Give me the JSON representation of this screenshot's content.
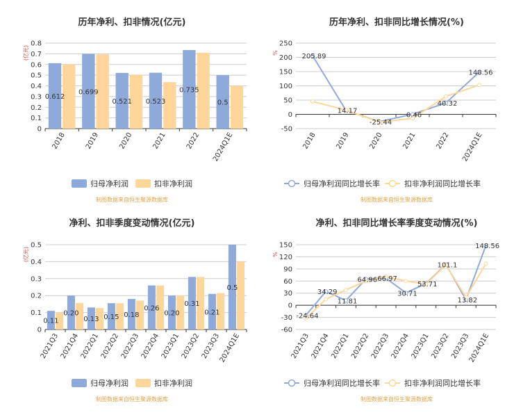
{
  "colors": {
    "primary": "#8eaadb",
    "secondary": "#ffd699",
    "grid": "#cccccc",
    "axis": "#333333",
    "source": "#e0a44a",
    "unit": "#e0463e"
  },
  "chart_data": [
    {
      "id": "annual-profit",
      "type": "bar",
      "title": "历年净利、扣非情况(亿元)",
      "unit_label": "(亿元)",
      "categories": [
        "2018",
        "2019",
        "2020",
        "2021",
        "2022",
        "2024Q1E"
      ],
      "series": [
        {
          "name": "归母净利润",
          "values": [
            0.612,
            0.699,
            0.521,
            0.523,
            0.735,
            0.5
          ],
          "labels": [
            "0.612",
            "0.699",
            "0.521",
            "0.523",
            "0.735",
            "0.5"
          ]
        },
        {
          "name": "扣非净利润",
          "values": [
            0.6,
            0.695,
            0.505,
            0.435,
            0.71,
            0.4
          ]
        }
      ],
      "yticks": [
        "0",
        "0.1",
        "0.2",
        "0.3",
        "0.4",
        "0.5",
        "0.6",
        "0.7",
        "0.8"
      ],
      "ylim": [
        0,
        0.8
      ],
      "legend_position": "bottom",
      "source": "制图数据来自恒生聚源数据库"
    },
    {
      "id": "annual-growth",
      "type": "line",
      "title": "历年净利、扣非同比增长情况(%)",
      "unit_label": "%",
      "categories": [
        "2018",
        "2019",
        "2020",
        "2021",
        "2022",
        "2024Q1E"
      ],
      "series": [
        {
          "name": "归母净利润同比增长率",
          "values": [
            205.89,
            14.17,
            -25.44,
            0.46,
            40.32,
            148.56
          ],
          "labels": [
            "205.89",
            "14.17",
            "-25.44",
            "0.46",
            "40.32",
            "148.56"
          ]
        },
        {
          "name": "扣非净利润同比增长率",
          "values": [
            45,
            15.5,
            -27,
            -14,
            63,
            103
          ]
        }
      ],
      "yticks": [
        "-50",
        "0",
        "50",
        "100",
        "150",
        "200",
        "250"
      ],
      "ylim": [
        -50,
        250
      ],
      "legend_position": "bottom",
      "source": "制图数据来自恒生聚源数据库"
    },
    {
      "id": "quarterly-profit",
      "type": "bar",
      "title": "净利、扣非季度变动情况(亿元)",
      "unit_label": "(亿元)",
      "categories": [
        "2021Q3",
        "2021Q4",
        "2022Q1",
        "2022Q2",
        "2022Q3",
        "2022Q4",
        "2023Q1",
        "2023Q2",
        "2023Q3",
        "2024Q1E"
      ],
      "series": [
        {
          "name": "归母净利润",
          "values": [
            0.11,
            0.2,
            0.13,
            0.155,
            0.18,
            0.26,
            0.2,
            0.31,
            0.21,
            0.5
          ],
          "labels": [
            "0.11",
            "0.20",
            "0.13",
            "0.15",
            "0.18",
            "0.26",
            "0.20",
            "0.31",
            "0.21",
            "0.5"
          ]
        },
        {
          "name": "扣非净利润",
          "values": [
            0.1,
            0.157,
            0.127,
            0.155,
            0.17,
            0.26,
            0.2,
            0.31,
            0.215,
            0.4
          ]
        }
      ],
      "yticks": [
        "0",
        "0.1",
        "0.2",
        "0.3",
        "0.4",
        "0.5"
      ],
      "ylim": [
        0,
        0.5
      ],
      "legend_position": "bottom",
      "source": "制图数据来自恒生聚源数据库"
    },
    {
      "id": "quarterly-growth",
      "type": "line",
      "title": "净利、扣非同比增长率季度变动情况(%)",
      "unit_label": "%",
      "categories": [
        "2021Q3",
        "2021Q4",
        "2022Q1",
        "2022Q2",
        "2022Q3",
        "2022Q4",
        "2023Q1",
        "2023Q2",
        "2023Q3",
        "2024Q1E"
      ],
      "series": [
        {
          "name": "归母净利润同比增长率",
          "values": [
            -24.64,
            34.29,
            11.81,
            64.96,
            66.97,
            30.71,
            53.71,
            101.1,
            13.82,
            148.56
          ],
          "labels": [
            "-24.64",
            "34.29",
            "11.81",
            "64.96",
            "66.97",
            "30.71",
            "53.71",
            "101.1",
            "13.82",
            "148.56"
          ]
        },
        {
          "name": "扣非净利润同比增长率",
          "values": [
            -33,
            15,
            38,
            60,
            71,
            60,
            52,
            100,
            20,
            103
          ]
        }
      ],
      "yticks": [
        "-60",
        "-30",
        "0",
        "30",
        "60",
        "90",
        "120",
        "150"
      ],
      "ylim": [
        -60,
        150
      ],
      "legend_position": "bottom",
      "source": "制图数据来自恒生聚源数据库"
    }
  ]
}
